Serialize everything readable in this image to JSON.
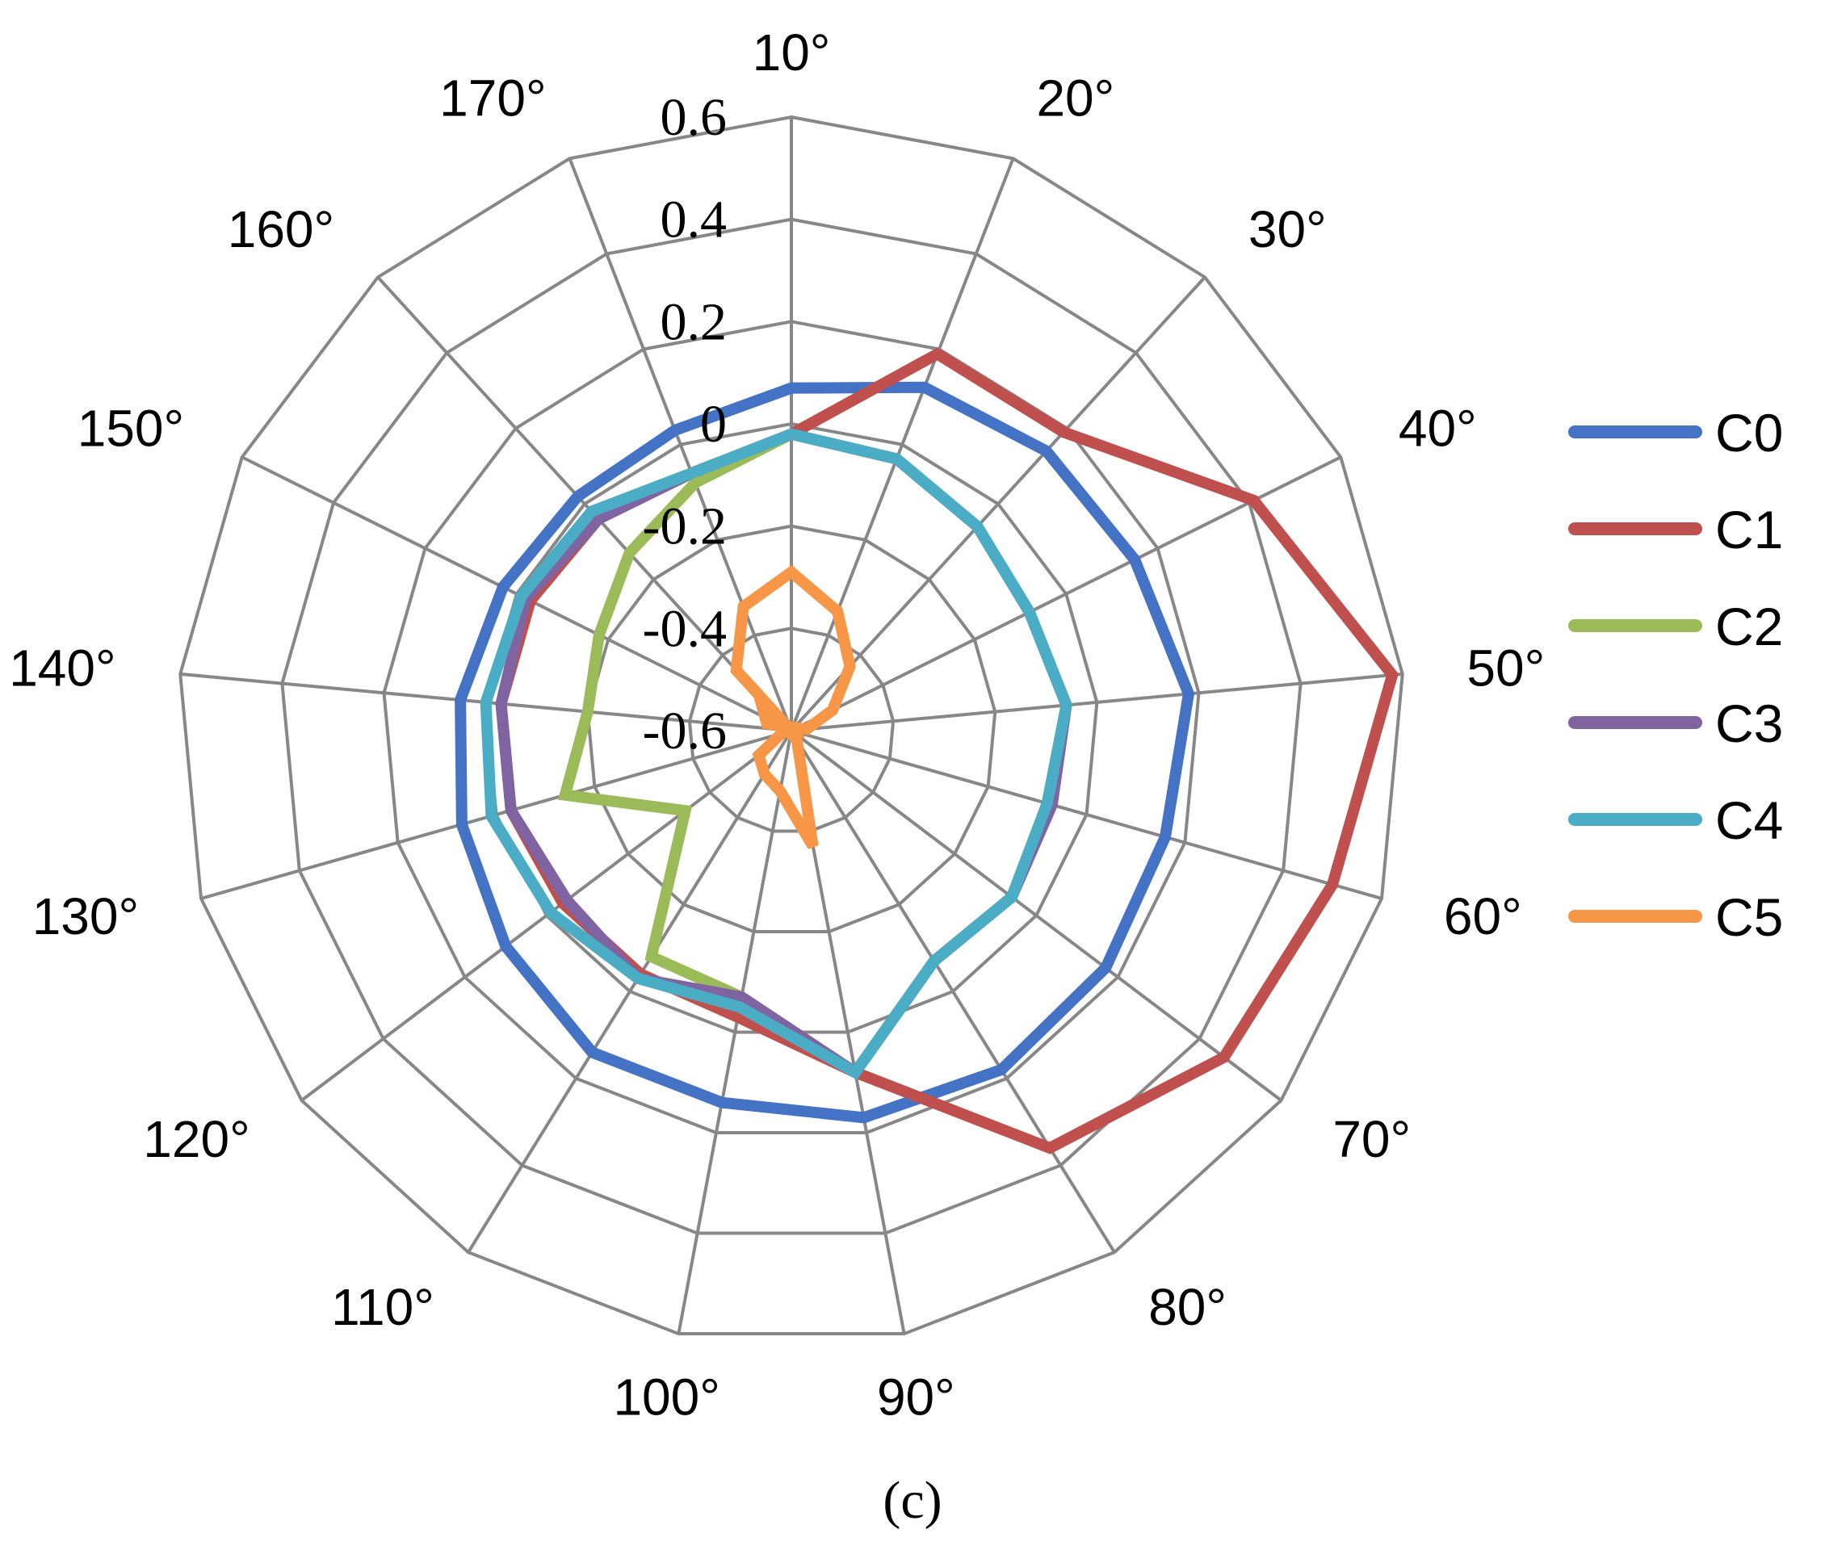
{
  "chart_data": {
    "type": "radar",
    "categories": [
      "10°",
      "20°",
      "30°",
      "40°",
      "50°",
      "60°",
      "70°",
      "80°",
      "90°",
      "100°",
      "110°",
      "120°",
      "130°",
      "140°",
      "150°",
      "160°",
      "170°"
    ],
    "rlim": [
      -0.6,
      0.6
    ],
    "ticks": [
      "-0.6",
      "-0.4",
      "-0.2",
      "0",
      "0.2",
      "0.4",
      "0.6"
    ],
    "tick_values": [
      -0.6,
      -0.4,
      -0.2,
      0,
      0.2,
      0.4,
      0.6
    ],
    "grid": true,
    "legend_position": "right",
    "caption": "(c)",
    "series": [
      {
        "name": "C0",
        "color": "#4472C4",
        "values": [
          0.07,
          0.12,
          0.14,
          0.15,
          0.18,
          0.16,
          0.17,
          0.18,
          0.17,
          0.14,
          0.14,
          0.1,
          0.07,
          0.05,
          0.03,
          0.02,
          0.03
        ]
      },
      {
        "name": "C1",
        "color": "#C0504D",
        "values": [
          -0.02,
          0.19,
          0.19,
          0.41,
          0.58,
          0.5,
          0.46,
          0.36,
          0.08,
          -0.03,
          -0.04,
          -0.04,
          -0.03,
          -0.03,
          -0.03,
          -0.04,
          -0.06
        ]
      },
      {
        "name": "C2",
        "color": "#9BBB59",
        "values": [
          -0.02,
          -0.03,
          -0.06,
          -0.08,
          -0.06,
          -0.08,
          -0.06,
          -0.07,
          0.08,
          -0.07,
          -0.08,
          -0.34,
          -0.14,
          -0.2,
          -0.18,
          -0.13,
          -0.08
        ]
      },
      {
        "name": "C3",
        "color": "#8064A2",
        "values": [
          -0.02,
          -0.03,
          -0.06,
          -0.08,
          -0.06,
          -0.07,
          -0.06,
          -0.07,
          0.08,
          -0.07,
          -0.03,
          -0.05,
          -0.03,
          -0.03,
          -0.02,
          -0.04,
          -0.06
        ]
      },
      {
        "name": "C4",
        "color": "#4BACC6",
        "values": [
          -0.02,
          -0.03,
          -0.06,
          -0.08,
          -0.06,
          -0.08,
          -0.06,
          -0.07,
          0.08,
          -0.05,
          -0.03,
          -0.01,
          0.01,
          0.0,
          -0.01,
          -0.02,
          -0.06
        ]
      },
      {
        "name": "C5",
        "color": "#F79646",
        "values": [
          -0.29,
          -0.35,
          -0.43,
          -0.51,
          -0.57,
          -0.65,
          -0.67,
          -0.58,
          -0.37,
          -0.48,
          -0.5,
          -0.52,
          -0.58,
          -0.59,
          -0.6,
          -0.44,
          -0.34
        ]
      }
    ]
  }
}
